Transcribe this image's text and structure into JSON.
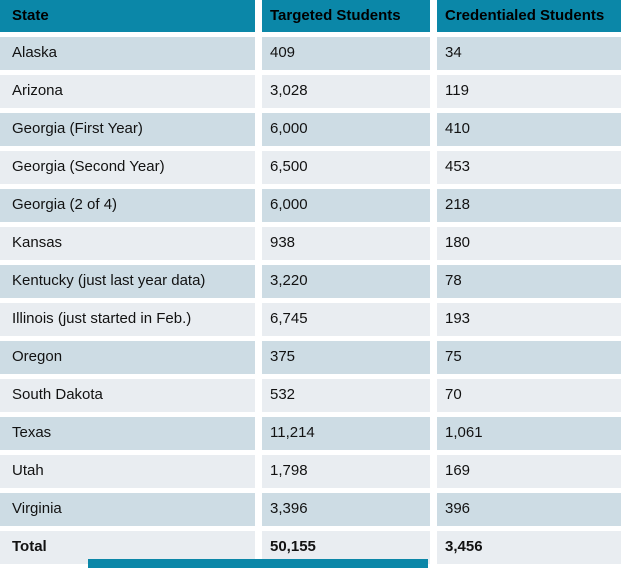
{
  "colors": {
    "header_bg": "#0b87a8",
    "row_dark": "#cddce4",
    "row_light": "#e9edf1",
    "accent": "#0b87a8"
  },
  "table": {
    "columns": [
      "State",
      "Targeted Students",
      "Credentialed Students"
    ],
    "rows": [
      [
        "Alaska",
        "409",
        "34"
      ],
      [
        "Arizona",
        "3,028",
        "119"
      ],
      [
        "Georgia (First Year)",
        "6,000",
        "410"
      ],
      [
        "Georgia (Second Year)",
        "6,500",
        "453"
      ],
      [
        "Georgia (2 of 4)",
        "6,000",
        "218"
      ],
      [
        "Kansas",
        "938",
        "180"
      ],
      [
        "Kentucky (just last year data)",
        "3,220",
        "78"
      ],
      [
        "Illinois (just started in Feb.)",
        "6,745",
        "193"
      ],
      [
        "Oregon",
        "375",
        "75"
      ],
      [
        "South Dakota",
        "532",
        "70"
      ],
      [
        "Texas",
        "11,214",
        "1,061"
      ],
      [
        "Utah",
        "1,798",
        "169"
      ],
      [
        "Virginia",
        "3,396",
        "396"
      ]
    ],
    "total_row": [
      "Total",
      "50,155",
      "3,456"
    ]
  }
}
